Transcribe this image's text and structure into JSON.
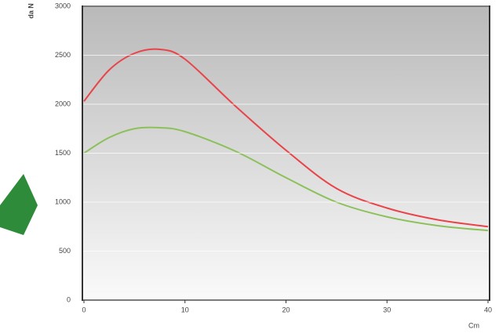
{
  "chart_data": {
    "type": "line",
    "y_label": "da N",
    "x_label": "Cm",
    "x": [
      0,
      2.5,
      5,
      7.5,
      10,
      15,
      20,
      25,
      30,
      35,
      40
    ],
    "series": [
      {
        "color": "#e8444a",
        "values": [
          2030,
          2350,
          2520,
          2560,
          2460,
          1980,
          1530,
          1140,
          940,
          820,
          750
        ]
      },
      {
        "color": "#8cc05a",
        "values": [
          1500,
          1660,
          1750,
          1760,
          1720,
          1520,
          1250,
          1000,
          850,
          760,
          710
        ]
      }
    ],
    "xlim": [
      0,
      40
    ],
    "xticks": [
      0,
      10,
      20,
      30,
      40
    ],
    "ylim": [
      0,
      3000
    ],
    "yticks": [
      0,
      500,
      1000,
      1500,
      2000,
      2500,
      3000
    ],
    "grid": true
  }
}
